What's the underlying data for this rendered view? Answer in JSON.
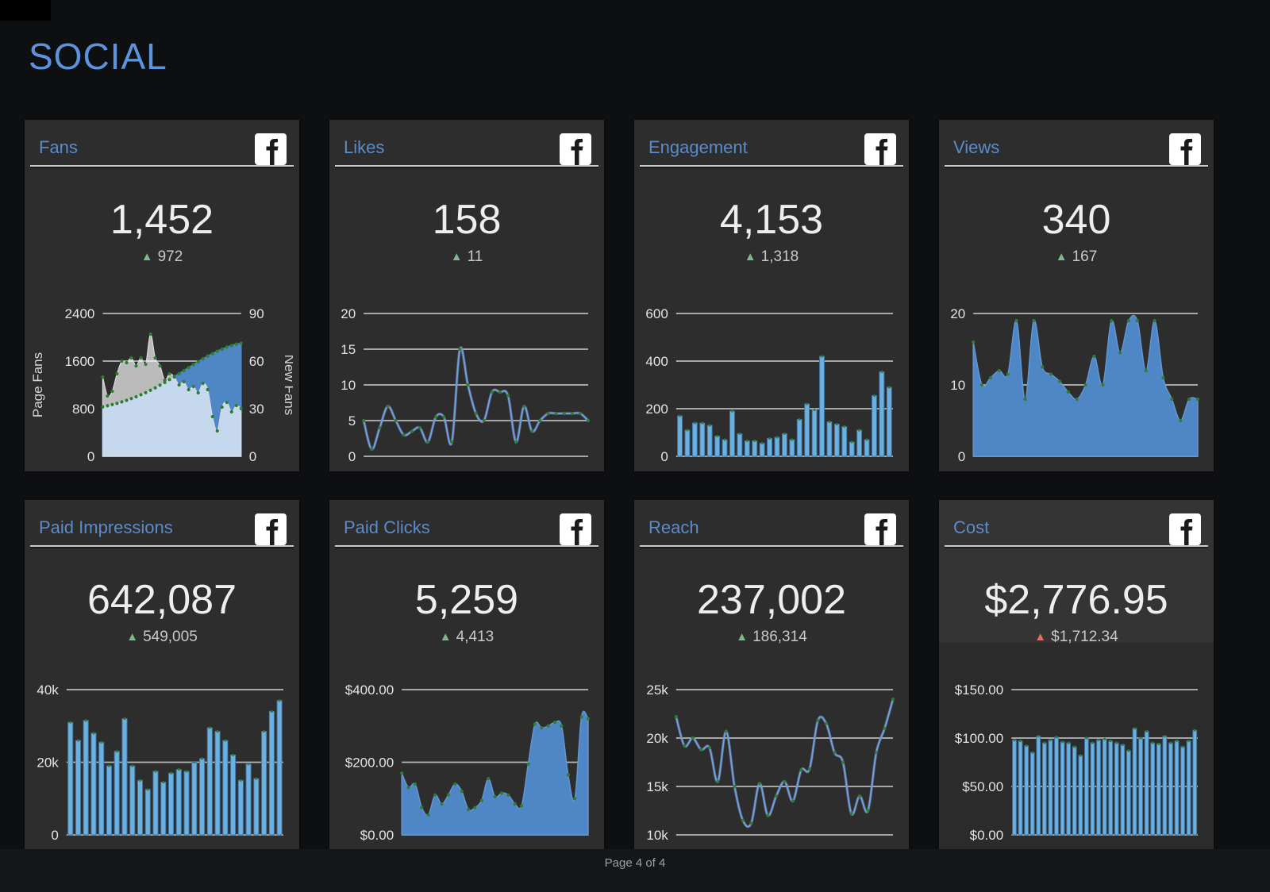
{
  "page": {
    "title": "SOCIAL",
    "footer": "Page 4 of 4"
  },
  "colors": {
    "accent_blue": "#5b8cc9",
    "bar_blue": "#6cb0df",
    "bar_edge": "#3f79ab",
    "area_blue": "#4e86c6",
    "area_edge": "#6296ce",
    "line_blue": "#68a4d9",
    "line_purple": "#8a79bd",
    "marker_green": "#2f7d33",
    "delta_green": "#7fb88f",
    "delta_red": "#e0705f",
    "grid": "#cdd0d3",
    "tick_text": "#e2e4e6",
    "axis_title": "#d5d5d5",
    "fans_overlay_white": "rgba(255,255,255,0.68)"
  },
  "cards": [
    {
      "id": "fans",
      "title": "Fans",
      "value": "1,452",
      "delta": "972",
      "trend": "up",
      "icon": "facebook-icon"
    },
    {
      "id": "likes",
      "title": "Likes",
      "value": "158",
      "delta": "11",
      "trend": "up",
      "icon": "facebook-icon"
    },
    {
      "id": "engagement",
      "title": "Engagement",
      "value": "4,153",
      "delta": "1,318",
      "trend": "up",
      "icon": "facebook-icon"
    },
    {
      "id": "views",
      "title": "Views",
      "value": "340",
      "delta": "167",
      "trend": "up",
      "icon": "facebook-icon"
    },
    {
      "id": "paid-impressions",
      "title": "Paid Impressions",
      "value": "642,087",
      "delta": "549,005",
      "trend": "up",
      "icon": "facebook-icon"
    },
    {
      "id": "paid-clicks",
      "title": "Paid Clicks",
      "value": "5,259",
      "delta": "4,413",
      "trend": "up",
      "icon": "facebook-icon"
    },
    {
      "id": "reach",
      "title": "Reach",
      "value": "237,002",
      "delta": "186,314",
      "trend": "up",
      "icon": "facebook-icon"
    },
    {
      "id": "cost",
      "title": "Cost",
      "value": "$2,776.95",
      "delta": "$1,712.34",
      "trend": "up-bad",
      "icon": "facebook-icon"
    }
  ],
  "chart_data": [
    {
      "card": "fans",
      "type": "dual-area",
      "title": "Fans history",
      "ylabel": "Page Fans",
      "ylim": [
        0,
        2400
      ],
      "yticks": [
        0,
        800,
        1600,
        2400
      ],
      "ytick_labels": [
        "0",
        "800",
        "1600",
        "2400"
      ],
      "y2label": "New Fans",
      "y2lim": [
        0,
        90
      ],
      "y2ticks": [
        0,
        30,
        60,
        90
      ],
      "y2tick_labels": [
        "0",
        "30",
        "60",
        "90"
      ],
      "grid": true,
      "series": [
        {
          "name": "Page Fans",
          "axis": "left",
          "values": [
            830,
            850,
            870,
            890,
            915,
            940,
            970,
            1000,
            1035,
            1070,
            1110,
            1150,
            1195,
            1240,
            1290,
            1340,
            1390,
            1440,
            1490,
            1540,
            1590,
            1640,
            1685,
            1725,
            1765,
            1800,
            1835,
            1862,
            1885,
            1900
          ]
        },
        {
          "name": "New Fans",
          "axis": "right",
          "values": [
            50,
            38,
            41,
            52,
            60,
            59,
            62,
            57,
            62,
            58,
            77,
            62,
            57,
            48,
            52,
            50,
            45,
            47,
            42,
            44,
            40,
            46,
            42,
            25,
            16,
            31,
            34,
            28,
            32,
            30
          ]
        }
      ]
    },
    {
      "card": "likes",
      "type": "line",
      "title": "Likes history",
      "ylim": [
        0,
        20
      ],
      "yticks": [
        0,
        5,
        10,
        15,
        20
      ],
      "ytick_labels": [
        "0",
        "5",
        "10",
        "15",
        "20"
      ],
      "grid": true,
      "values": [
        5,
        1,
        4,
        7,
        5,
        3,
        3.5,
        4,
        2,
        5.5,
        5.5,
        2,
        15,
        10,
        6,
        5,
        9,
        9,
        8.5,
        2,
        7,
        3.5,
        5,
        6,
        6,
        6,
        6,
        6,
        5
      ]
    },
    {
      "card": "engagement",
      "type": "bar",
      "title": "Engagement history",
      "ylim": [
        0,
        600
      ],
      "yticks": [
        0,
        200,
        400,
        600
      ],
      "ytick_labels": [
        "0",
        "200",
        "400",
        "600"
      ],
      "grid": true,
      "values": [
        170,
        110,
        140,
        140,
        130,
        85,
        70,
        190,
        95,
        65,
        65,
        55,
        75,
        80,
        95,
        70,
        155,
        220,
        195,
        420,
        145,
        135,
        125,
        60,
        110,
        70,
        255,
        355,
        290
      ]
    },
    {
      "card": "views",
      "type": "area",
      "title": "Views history",
      "ylim": [
        0,
        20
      ],
      "yticks": [
        0,
        10,
        20
      ],
      "ytick_labels": [
        "0",
        "10",
        "20"
      ],
      "grid": true,
      "values": [
        16,
        10,
        11,
        12,
        11.5,
        19,
        8,
        19,
        12.5,
        11.5,
        10.5,
        9,
        8,
        10,
        14,
        10,
        19,
        14.5,
        19,
        19,
        12,
        19,
        11,
        8,
        5,
        8,
        8
      ]
    },
    {
      "card": "paid-impressions",
      "type": "bar",
      "title": "Paid Impressions history",
      "ylim": [
        0,
        40000
      ],
      "yticks": [
        0,
        20000,
        40000
      ],
      "ytick_labels": [
        "0",
        "20k",
        "40k"
      ],
      "grid": true,
      "values": [
        31000,
        26000,
        31500,
        28000,
        25500,
        19000,
        23000,
        32000,
        19000,
        15000,
        12500,
        17500,
        14500,
        17000,
        18000,
        17500,
        20000,
        21000,
        29500,
        28500,
        26000,
        22000,
        15000,
        19500,
        15500,
        28500,
        34000,
        37000
      ]
    },
    {
      "card": "paid-clicks",
      "type": "area",
      "title": "Paid Clicks history",
      "ylim": [
        0,
        400
      ],
      "yticks": [
        0,
        200,
        400
      ],
      "ytick_labels": [
        "$0.00",
        "$200.00",
        "$400.00"
      ],
      "grid": true,
      "values": [
        170,
        130,
        140,
        75,
        55,
        110,
        85,
        110,
        140,
        120,
        70,
        75,
        95,
        155,
        105,
        115,
        110,
        85,
        80,
        195,
        305,
        295,
        300,
        310,
        300,
        165,
        100,
        325,
        320
      ]
    },
    {
      "card": "reach",
      "type": "line",
      "title": "Reach history",
      "ylim": [
        10000,
        25000
      ],
      "yticks": [
        10000,
        15000,
        20000,
        25000
      ],
      "ytick_labels": [
        "10k",
        "15k",
        "20k",
        "25k"
      ],
      "grid": true,
      "values": [
        22200,
        19200,
        20000,
        18800,
        19000,
        15500,
        20700,
        15000,
        11500,
        11200,
        15300,
        12000,
        14000,
        15500,
        13500,
        16700,
        16800,
        21800,
        21500,
        18500,
        17500,
        12200,
        14000,
        12500,
        18500,
        21000,
        24000
      ]
    },
    {
      "card": "cost",
      "type": "bar",
      "title": "Cost history",
      "ylim": [
        0,
        150
      ],
      "yticks": [
        0,
        50,
        100,
        150
      ],
      "ytick_labels": [
        "$0.00",
        "$50.00",
        "$100.00",
        "$150.00"
      ],
      "grid": true,
      "values": [
        98,
        97,
        92,
        85,
        102,
        95,
        98,
        101,
        96,
        95,
        91,
        82,
        100,
        95,
        98,
        99,
        97,
        95,
        93,
        87,
        110,
        100,
        107,
        95,
        94,
        102,
        95,
        97,
        91,
        97,
        108
      ]
    }
  ]
}
